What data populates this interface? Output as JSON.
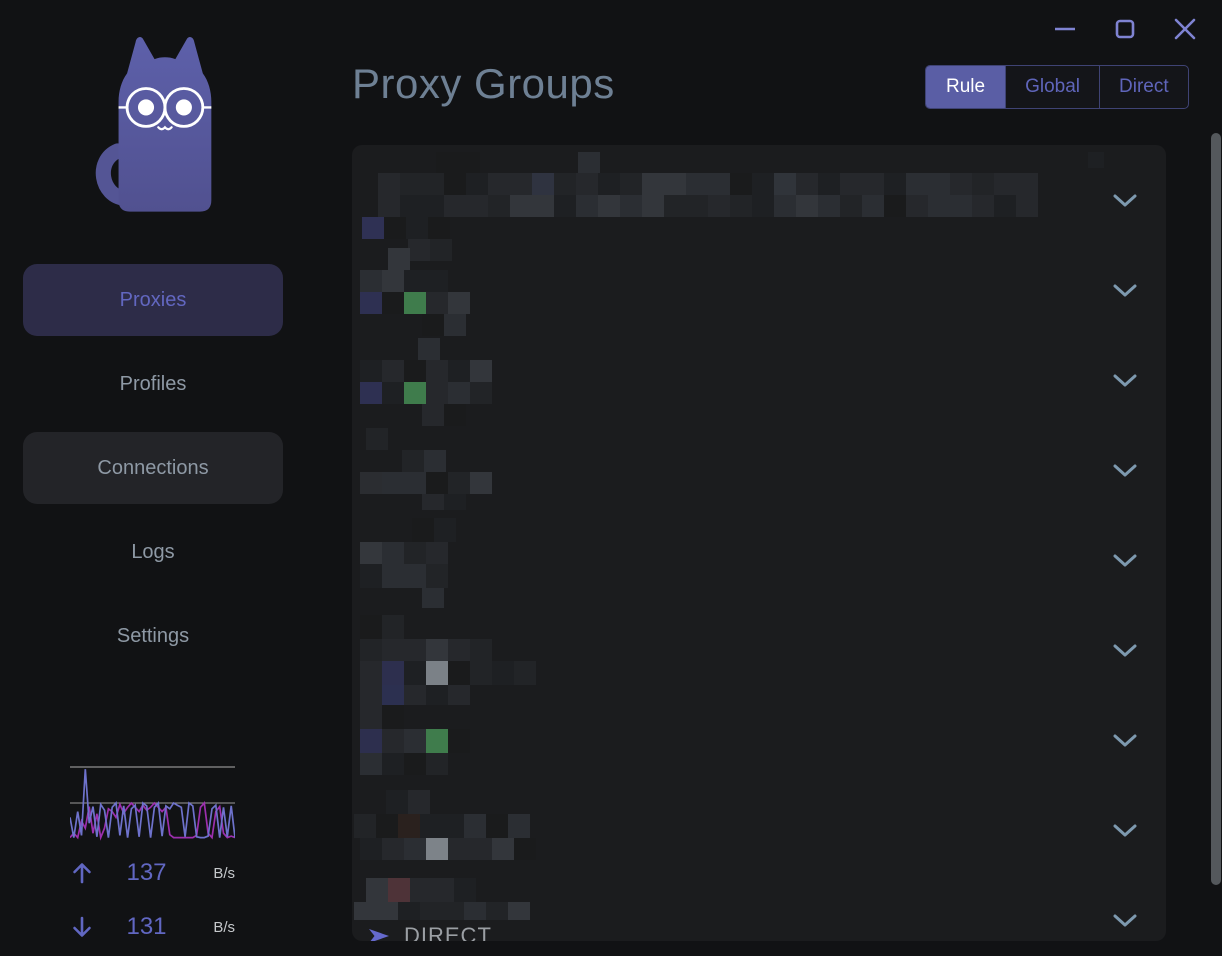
{
  "window_controls": {
    "minimize_icon": "minimize-line",
    "maximize_icon": "maximize-square",
    "close_icon": "close-x"
  },
  "sidebar": {
    "logo_icon": "cat-with-glasses-logo",
    "items": [
      {
        "label": "Proxies",
        "active": true,
        "hovered": false
      },
      {
        "label": "Profiles",
        "active": false,
        "hovered": false
      },
      {
        "label": "Connections",
        "active": false,
        "hovered": true
      },
      {
        "label": "Logs",
        "active": false,
        "hovered": false
      },
      {
        "label": "Settings",
        "active": false,
        "hovered": false
      }
    ],
    "traffic": {
      "up": {
        "icon": "arrow-up",
        "value": "137",
        "unit": "B/s"
      },
      "down": {
        "icon": "arrow-down",
        "value": "131",
        "unit": "B/s"
      },
      "graph": {
        "up_color": "#6e72cc",
        "down_color": "#9c2fae",
        "gridline_color": "#8f8f8f",
        "up_series": [
          0.3,
          0.02,
          0.38,
          0.05,
          0.97,
          0.22,
          0.45,
          0.03,
          0.48,
          0.4,
          0.02,
          0.44,
          0.5,
          0.05,
          0.46,
          0.02,
          0.42,
          0.47,
          0.03,
          0.5,
          0.46,
          0.02,
          0.44,
          0.5,
          0.04,
          0.46,
          0.42,
          0.5,
          0.47,
          0.44,
          0.03,
          0.5,
          0.46,
          0.03,
          0.02,
          0.02,
          0.04,
          0.42,
          0.47,
          0.02,
          0.44,
          0.03,
          0.46,
          0.02
        ],
        "down_series": [
          0.02,
          0.08,
          0.02,
          0.25,
          0.15,
          0.45,
          0.08,
          0.35,
          0.02,
          0.15,
          0.42,
          0.38,
          0.3,
          0.48,
          0.36,
          0.44,
          0.5,
          0.44,
          0.38,
          0.47,
          0.4,
          0.44,
          0.5,
          0.44,
          0.38,
          0.44,
          0.06,
          0.02,
          0.02,
          0.02,
          0.02,
          0.02,
          0.02,
          0.05,
          0.44,
          0.5,
          0.08,
          0.02,
          0.38,
          0.45,
          0.08,
          0.02,
          0.04,
          0.02
        ]
      }
    }
  },
  "header": {
    "title": "Proxy Groups",
    "mode_switch": [
      {
        "label": "Rule",
        "active": true
      },
      {
        "label": "Global",
        "active": false
      },
      {
        "label": "Direct",
        "active": false
      }
    ]
  },
  "proxy_groups": {
    "redacted": true,
    "chevron_icon": "chevron-down-icon",
    "chevron_color": "#7d99af",
    "rows": [
      {
        "strips": [
          [
            84,
            7,
            46,
            21
          ],
          [
            226,
            7,
            22,
            21
          ],
          [
            736,
            7,
            16,
            16
          ],
          [
            26,
            28,
            666,
            44,
            [
              [
                0,
                "#26282c"
              ],
              [
                7,
                "#2f3340"
              ],
              [
                18,
                "#30343a"
              ]
            ]
          ],
          [
            10,
            72,
            88,
            22,
            [
              [
                0,
                "#2f3154"
              ]
            ]
          ],
          [
            56,
            94,
            48,
            22
          ]
        ]
      },
      {
        "strips": [
          [
            36,
            103,
            40,
            22
          ],
          [
            8,
            125,
            96,
            22
          ],
          [
            8,
            147,
            130,
            22,
            [
              [
                0,
                "#2e3052"
              ],
              [
                2,
                "#3f7c4c"
              ]
            ]
          ],
          [
            70,
            169,
            46,
            22
          ]
        ]
      },
      {
        "strips": [
          [
            66,
            193,
            28,
            22
          ],
          [
            8,
            215,
            150,
            22
          ],
          [
            8,
            237,
            150,
            22,
            [
              [
                0,
                "#2e3052"
              ],
              [
                2,
                "#3f7c4c"
              ]
            ]
          ],
          [
            70,
            259,
            44,
            22
          ]
        ]
      },
      {
        "strips": [
          [
            14,
            283,
            36,
            22
          ],
          [
            50,
            305,
            64,
            22
          ],
          [
            8,
            327,
            150,
            22,
            [
              [
                0,
                "#2b2d31"
              ]
            ]
          ],
          [
            70,
            349,
            44,
            16
          ]
        ]
      },
      {
        "strips": [
          [
            60,
            373,
            52,
            24
          ],
          [
            8,
            397,
            108,
            22,
            [
              [
                0,
                "#34373c"
              ]
            ]
          ],
          [
            8,
            419,
            108,
            24
          ],
          [
            70,
            443,
            26,
            20
          ]
        ]
      },
      {
        "strips": [
          [
            8,
            470,
            62,
            24
          ],
          [
            8,
            494,
            134,
            22
          ],
          [
            8,
            516,
            178,
            24,
            [
              [
                1,
                "#2d2f4e"
              ],
              [
                3,
                "#7b8187"
              ]
            ]
          ],
          [
            8,
            540,
            120,
            20,
            [
              [
                1,
                "#2c3050"
              ]
            ]
          ]
        ]
      },
      {
        "strips": [
          [
            8,
            560,
            58,
            24
          ],
          [
            8,
            584,
            110,
            24,
            [
              [
                0,
                "#2d2f4e"
              ],
              [
                3,
                "#3f7c4c"
              ]
            ]
          ],
          [
            8,
            608,
            90,
            22
          ]
        ]
      },
      {
        "strips": [
          [
            34,
            645,
            56,
            24
          ],
          [
            2,
            669,
            182,
            24,
            [
              [
                2,
                "#2a211e"
              ]
            ]
          ],
          [
            8,
            693,
            176,
            22,
            [
              [
                3,
                "#7d8389"
              ]
            ]
          ]
        ]
      },
      {
        "strips": [
          [
            14,
            733,
            126,
            24,
            [
              [
                1,
                "#4e3338"
              ]
            ]
          ],
          [
            2,
            757,
            188,
            18
          ]
        ]
      }
    ],
    "last_visible_node": {
      "icon": "selected-node-arrow",
      "label": "DIRECT"
    }
  },
  "colors": {
    "page_bg": "#111214",
    "panel_bg": "#1b1c1e",
    "accent_purple": "#5a5ea5",
    "sidebar_active_bg": "#2d2c48",
    "sidebar_active_text": "#6267c0",
    "title_text": "#6e8094",
    "window_control": "#7f83d2",
    "scrollbar": "#54585c"
  }
}
